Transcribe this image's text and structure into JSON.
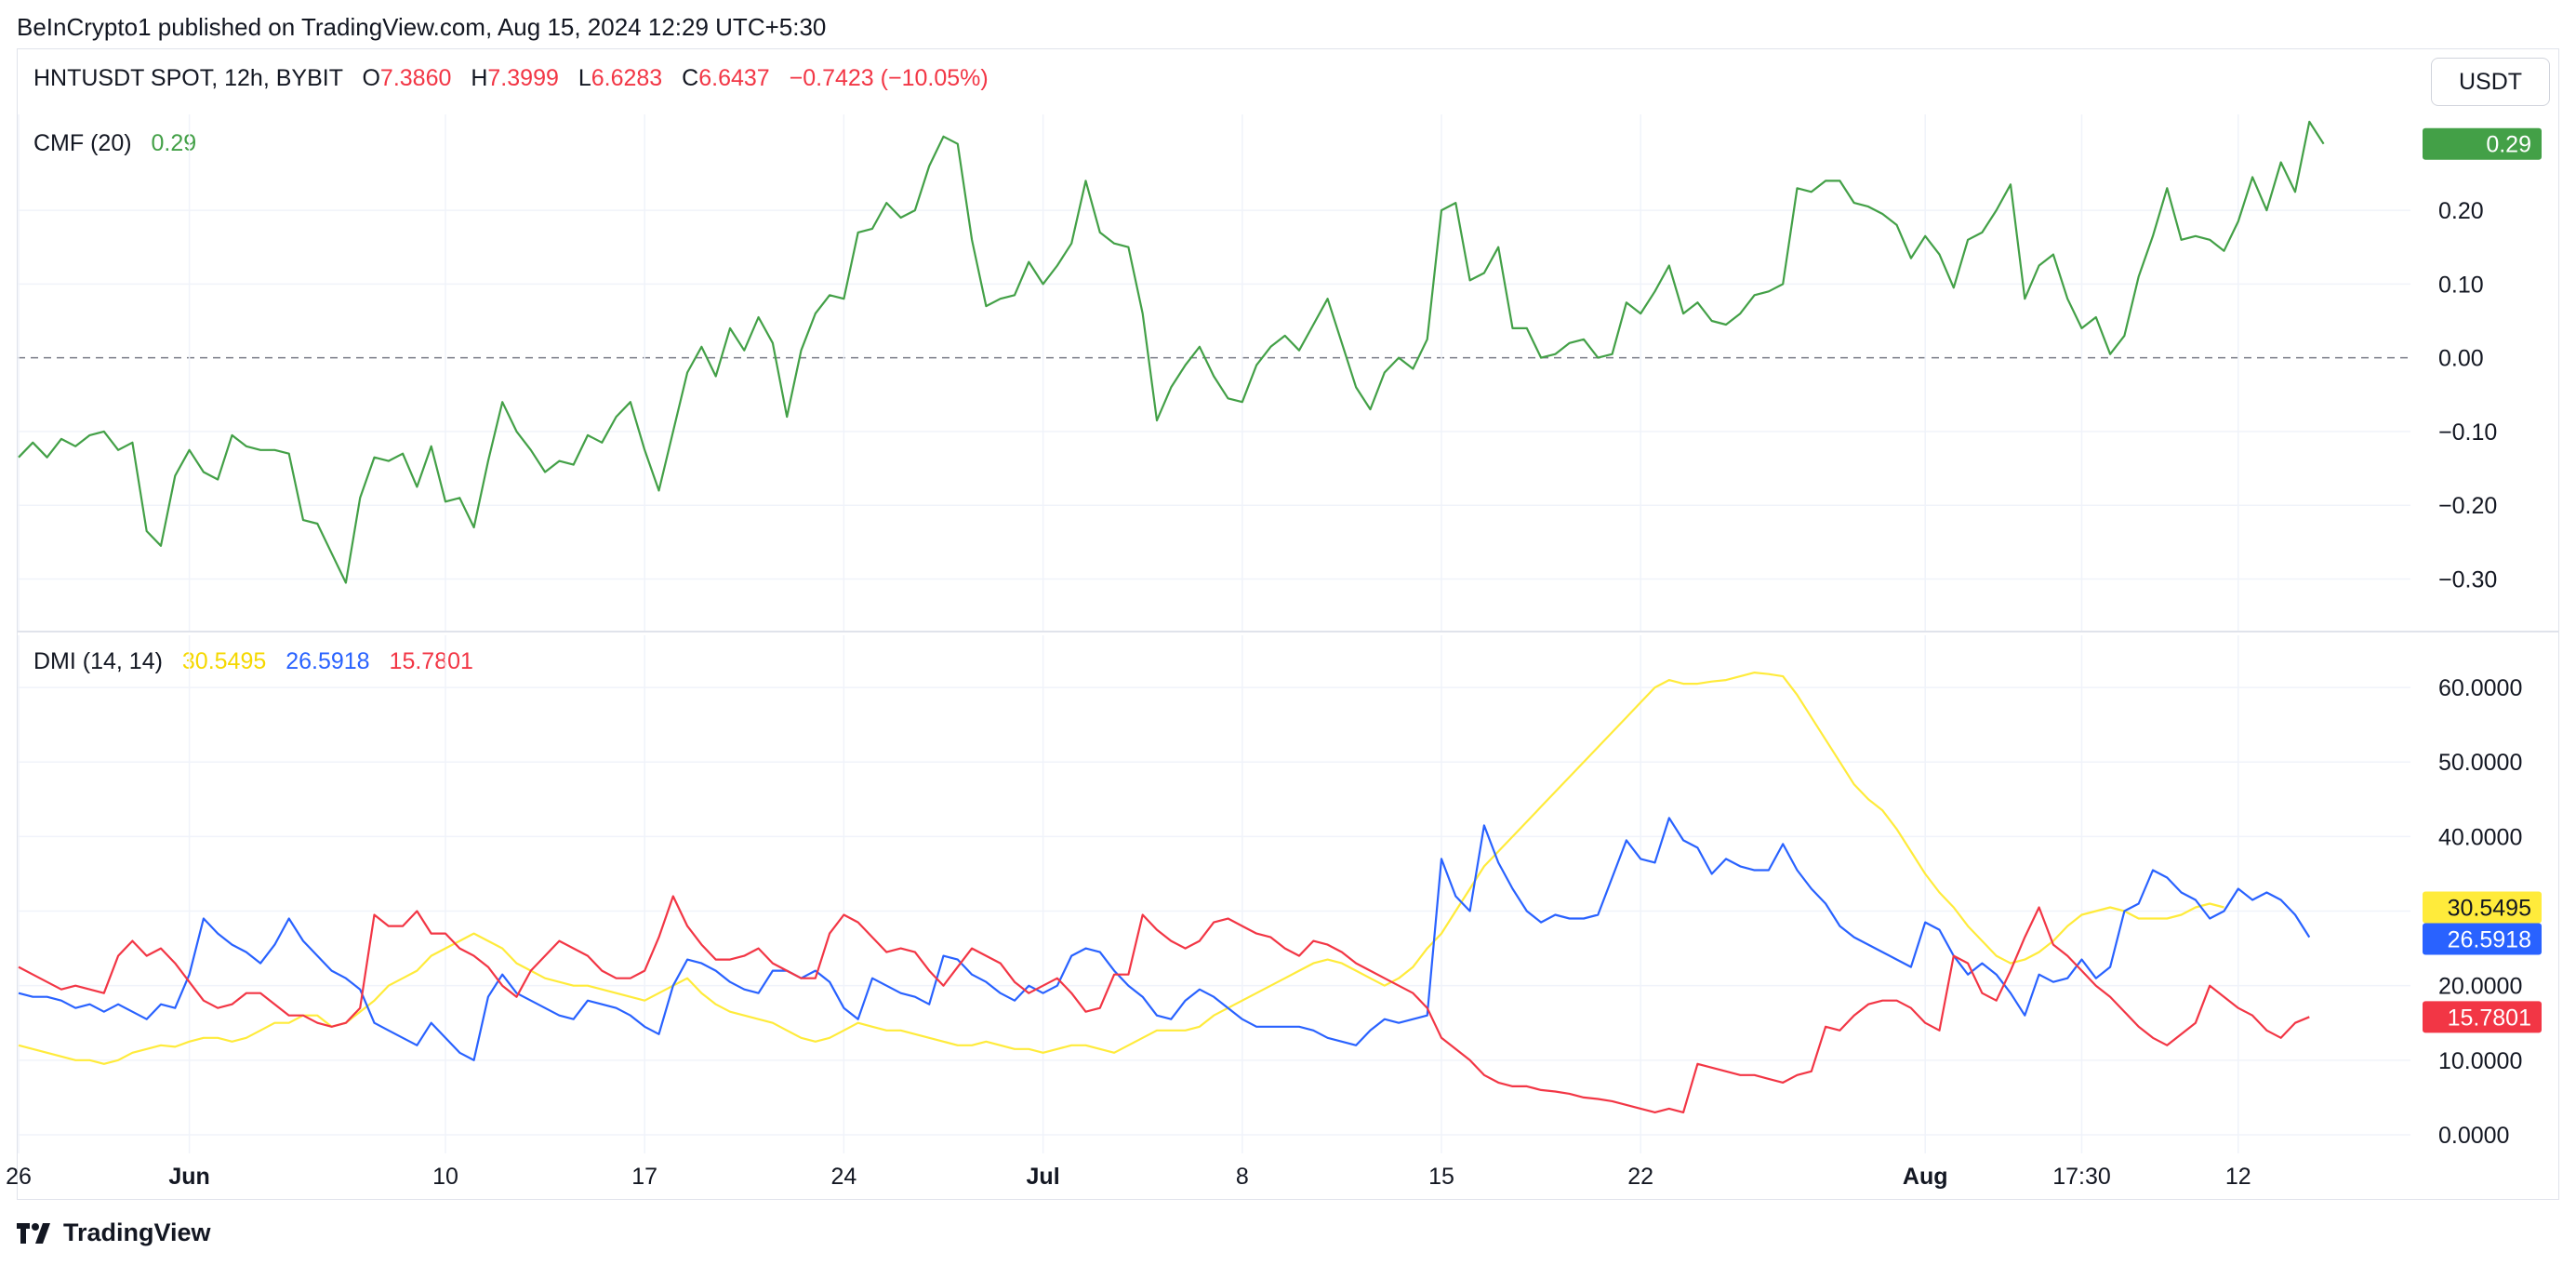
{
  "published_text": "BeInCrypto1 published on TradingView.com, Aug 15, 2024 12:29 UTC+5:30",
  "header": {
    "symbol": "HNTUSDT SPOT, 12h, BYBIT",
    "o_label": "O",
    "o_value": "7.3860",
    "h_label": "H",
    "h_value": "7.3999",
    "l_label": "L",
    "l_value": "6.6283",
    "c_label": "C",
    "c_value": "6.6437",
    "change": "−0.7423 (−10.05%)"
  },
  "currency_button": "USDT",
  "footer_brand": "TradingView",
  "colors": {
    "cmf": "#43a047",
    "adx": "#ffeb3b",
    "di_plus": "#2962ff",
    "di_minus": "#f23645",
    "negative": "#f23645"
  },
  "chart_data": [
    {
      "type": "line",
      "name": "CMF (20)",
      "legend_value": "0.29",
      "price_label": "0.29",
      "ylim": [
        -0.37,
        0.33
      ],
      "yticks": [
        0.2,
        0.1,
        0.0,
        -0.1,
        -0.2,
        -0.3
      ],
      "ytick_labels": [
        "0.20",
        "0.10",
        "0.00",
        "−0.10",
        "−0.20",
        "−0.30"
      ],
      "zero_line": "dashed",
      "grid": true,
      "x_start": "May 26",
      "interval_hours": 12,
      "series": [
        {
          "name": "CMF",
          "values": [
            -0.135,
            -0.115,
            -0.135,
            -0.11,
            -0.12,
            -0.105,
            -0.1,
            -0.125,
            -0.115,
            -0.235,
            -0.255,
            -0.16,
            -0.125,
            -0.155,
            -0.165,
            -0.105,
            -0.12,
            -0.125,
            -0.125,
            -0.13,
            -0.22,
            -0.225,
            -0.265,
            -0.305,
            -0.19,
            -0.135,
            -0.14,
            -0.13,
            -0.175,
            -0.12,
            -0.195,
            -0.19,
            -0.23,
            -0.14,
            -0.06,
            -0.1,
            -0.125,
            -0.155,
            -0.14,
            -0.145,
            -0.105,
            -0.115,
            -0.08,
            -0.06,
            -0.125,
            -0.18,
            -0.1,
            -0.02,
            0.015,
            -0.025,
            0.04,
            0.01,
            0.055,
            0.02,
            -0.08,
            0.01,
            0.06,
            0.085,
            0.08,
            0.17,
            0.175,
            0.21,
            0.19,
            0.2,
            0.26,
            0.3,
            0.29,
            0.16,
            0.07,
            0.08,
            0.085,
            0.13,
            0.1,
            0.125,
            0.155,
            0.24,
            0.17,
            0.155,
            0.15,
            0.06,
            -0.085,
            -0.04,
            -0.01,
            0.015,
            -0.025,
            -0.055,
            -0.06,
            -0.01,
            0.015,
            0.03,
            0.01,
            0.045,
            0.08,
            0.02,
            -0.04,
            -0.07,
            -0.02,
            0.0,
            -0.015,
            0.025,
            0.2,
            0.21,
            0.105,
            0.115,
            0.15,
            0.04,
            0.04,
            0.0,
            0.005,
            0.02,
            0.025,
            0.0,
            0.005,
            0.075,
            0.06,
            0.09,
            0.125,
            0.06,
            0.075,
            0.05,
            0.045,
            0.06,
            0.085,
            0.09,
            0.1,
            0.23,
            0.225,
            0.24,
            0.24,
            0.21,
            0.205,
            0.195,
            0.18,
            0.135,
            0.165,
            0.14,
            0.095,
            0.16,
            0.17,
            0.2,
            0.235,
            0.08,
            0.125,
            0.14,
            0.08,
            0.04,
            0.055,
            0.005,
            0.03,
            0.11,
            0.165,
            0.23,
            0.16,
            0.165,
            0.16,
            0.145,
            0.185,
            0.245,
            0.2,
            0.265,
            0.225,
            0.32,
            0.29
          ]
        }
      ]
    },
    {
      "type": "line",
      "name": "DMI (14, 14)",
      "legend_values": [
        "30.5495",
        "26.5918",
        "15.7801"
      ],
      "price_labels": [
        "30.5495",
        "26.5918",
        "15.7801"
      ],
      "ylim": [
        -2.5,
        67
      ],
      "yticks": [
        60,
        50,
        40,
        30,
        20,
        10,
        0
      ],
      "ytick_labels": [
        "60.0000",
        "50.0000",
        "40.0000",
        "30.0000",
        "20.0000",
        "10.0000",
        "0.0000"
      ],
      "grid": true,
      "series": [
        {
          "name": "ADX",
          "values": [
            12,
            11.5,
            11,
            10.5,
            10,
            10,
            9.5,
            10,
            11,
            11.5,
            12,
            11.8,
            12.5,
            13,
            13,
            12.5,
            13,
            14,
            15,
            15,
            16,
            16,
            14.5,
            15,
            16.5,
            18,
            20,
            21,
            22,
            24,
            25,
            26,
            27,
            26,
            25,
            23,
            22,
            21,
            20.5,
            20,
            20,
            19.5,
            19,
            18.5,
            18,
            19,
            20,
            21,
            19,
            17.5,
            16.5,
            16,
            15.5,
            15,
            14,
            13,
            12.5,
            13,
            14,
            15,
            14.5,
            14,
            14,
            13.5,
            13,
            12.5,
            12,
            12,
            12.5,
            12,
            11.5,
            11.5,
            11,
            11.5,
            12,
            12,
            11.5,
            11,
            12,
            13,
            14,
            14,
            14,
            14.5,
            16,
            17,
            18,
            19,
            20,
            21,
            22,
            23,
            23.5,
            23,
            22,
            21,
            20,
            21,
            22.5,
            25,
            27,
            30,
            33,
            36,
            38,
            40,
            42,
            44,
            46,
            48,
            50,
            52,
            54,
            56,
            58,
            60,
            61,
            60.5,
            60.5,
            60.8,
            61,
            61.5,
            62,
            61.8,
            61.5,
            59,
            56,
            53,
            50,
            47,
            45,
            43.5,
            41,
            38,
            35,
            32.5,
            30.5,
            28,
            26,
            24,
            23,
            23.5,
            24.5,
            26,
            28,
            29.5,
            30,
            30.5,
            30,
            29,
            29,
            29,
            29.5,
            30.5,
            31,
            30.5
          ]
        },
        {
          "name": "+DI",
          "values": [
            19,
            18.5,
            18.5,
            18,
            17,
            17.5,
            16.5,
            17.5,
            16.5,
            15.5,
            17.5,
            17,
            21.5,
            29,
            27,
            25.5,
            24.5,
            23,
            25.5,
            29,
            26,
            24,
            22,
            21,
            19.5,
            15,
            14,
            13,
            12,
            15,
            13,
            11,
            10,
            18.5,
            21.5,
            19,
            18,
            17,
            16,
            15.5,
            18,
            17.5,
            17,
            16,
            14.5,
            13.5,
            20,
            23.5,
            23,
            22,
            20.5,
            19.5,
            19,
            22,
            22,
            21,
            22,
            20.5,
            17,
            15.5,
            21,
            20,
            19,
            18.5,
            17.5,
            24,
            23.5,
            21.5,
            20.5,
            19,
            18,
            20,
            19,
            20,
            24,
            25,
            24.5,
            22,
            20,
            18.5,
            16,
            15.5,
            18,
            19.5,
            18.5,
            17,
            15.5,
            14.5,
            14.5,
            14.5,
            14.5,
            14,
            13,
            12.5,
            12,
            14,
            15.5,
            15,
            15.5,
            16,
            37,
            32,
            30,
            41.5,
            36.5,
            33,
            30,
            28.5,
            29.5,
            29,
            29,
            29.5,
            34.5,
            39.5,
            37,
            36.5,
            42.5,
            39.5,
            38.5,
            35,
            37,
            36,
            35.5,
            35.5,
            39,
            35.5,
            33,
            31,
            28,
            26.5,
            25.5,
            24.5,
            23.5,
            22.5,
            28.5,
            27.5,
            24,
            21.5,
            23,
            21.5,
            19,
            16,
            21.5,
            20.5,
            21,
            23.5,
            21,
            22.5,
            30,
            31,
            35.5,
            34.5,
            32.5,
            31.5,
            29,
            30,
            33,
            31.5,
            32.5,
            31.5,
            29.5,
            26.5
          ]
        },
        {
          "name": "−DI",
          "values": [
            22.5,
            21.5,
            20.5,
            19.5,
            20,
            19.5,
            19,
            24,
            26,
            24,
            25,
            23,
            20.5,
            18,
            17,
            17.5,
            19,
            19,
            17.5,
            16,
            16,
            15,
            14.5,
            15,
            17,
            29.5,
            28,
            28,
            30,
            27,
            27,
            25,
            24,
            22.5,
            20,
            18.5,
            22,
            24,
            26,
            25,
            24,
            22,
            21,
            21,
            22,
            26.5,
            32,
            28,
            25.5,
            23.5,
            23.5,
            24,
            25,
            23,
            22,
            21,
            21,
            27,
            29.5,
            28.5,
            26.5,
            24.5,
            25,
            24.5,
            22,
            20,
            22.5,
            25,
            24,
            23,
            20.5,
            19,
            20,
            21,
            19,
            16.5,
            17,
            21.5,
            21.5,
            29.5,
            27.5,
            26,
            25,
            26,
            28.5,
            29,
            28,
            27,
            26.5,
            25,
            24,
            26,
            25.5,
            24.5,
            23,
            22,
            21,
            20,
            19,
            17,
            13,
            11.5,
            10,
            8,
            7,
            6.5,
            6.5,
            6,
            5.8,
            5.5,
            5,
            4.8,
            4.5,
            4,
            3.5,
            3,
            3.5,
            3,
            9.5,
            9,
            8.5,
            8,
            8,
            7.5,
            7,
            8,
            8.5,
            14.5,
            14,
            16,
            17.5,
            18,
            18,
            17,
            15,
            14,
            24,
            23,
            19,
            18,
            22,
            26.5,
            30.5,
            25.5,
            24,
            22,
            20,
            18.5,
            16.5,
            14.5,
            13,
            12,
            13.5,
            15,
            20,
            18.5,
            17,
            16,
            14,
            13,
            15,
            15.8
          ]
        }
      ],
      "x_ticks": [
        {
          "index": 0,
          "label": "26"
        },
        {
          "index": 12,
          "label": "Jun"
        },
        {
          "index": 30,
          "label": "10"
        },
        {
          "index": 44,
          "label": "17"
        },
        {
          "index": 58,
          "label": "24"
        },
        {
          "index": 72,
          "label": "Jul"
        },
        {
          "index": 86,
          "label": "8"
        },
        {
          "index": 100,
          "label": "15"
        },
        {
          "index": 114,
          "label": "22"
        },
        {
          "index": 134,
          "label": "Aug"
        },
        {
          "index": 145,
          "label": "17:30"
        },
        {
          "index": 156,
          "label": "12"
        }
      ]
    }
  ]
}
